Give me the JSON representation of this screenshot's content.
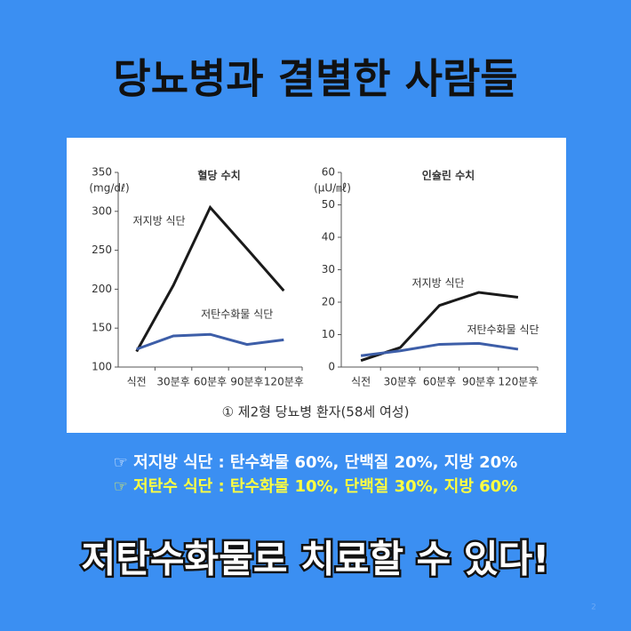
{
  "header": {
    "title": "당뇨병과 결별한 사람들"
  },
  "chart_data": [
    {
      "type": "line",
      "title": "혈당 수치",
      "ylabel": "(mg/dℓ)",
      "categories": [
        "식전",
        "30분후",
        "60분후",
        "90분후",
        "120분후"
      ],
      "series": [
        {
          "name": "저지방 식단",
          "color": "#1a1a1a",
          "values": [
            120,
            205,
            305,
            252,
            198
          ]
        },
        {
          "name": "저탄수화물 식단",
          "color": "#3d5ea8",
          "values": [
            123,
            140,
            142,
            129,
            135
          ]
        }
      ],
      "ylim": [
        100,
        350
      ],
      "yticks": [
        100,
        150,
        200,
        250,
        300,
        350
      ]
    },
    {
      "type": "line",
      "title": "인슐린 수치",
      "ylabel": "(μU/㎖)",
      "categories": [
        "식전",
        "30분후",
        "60분후",
        "90분후",
        "120분후"
      ],
      "series": [
        {
          "name": "저지방 식단",
          "color": "#1a1a1a",
          "values": [
            2,
            6,
            19,
            23,
            21.5
          ]
        },
        {
          "name": "저탄수화물 식단",
          "color": "#3d5ea8",
          "values": [
            3.5,
            5,
            7,
            7.3,
            5.5
          ]
        }
      ],
      "ylim": [
        0,
        60
      ],
      "yticks": [
        0,
        10,
        20,
        30,
        40,
        50,
        60
      ]
    }
  ],
  "caption": "① 제2형 당뇨병 환자(58세 여성)",
  "notes": [
    "☞ 저지방 식단 : 탄수화물 60%, 단백질 20%, 지방 20%",
    "☞ 저탄수 식단 : 탄수화물 10%, 단백질 30%, 지방 60%"
  ],
  "footer": "저탄수화물로 치료할 수 있다!",
  "page_number": "2"
}
